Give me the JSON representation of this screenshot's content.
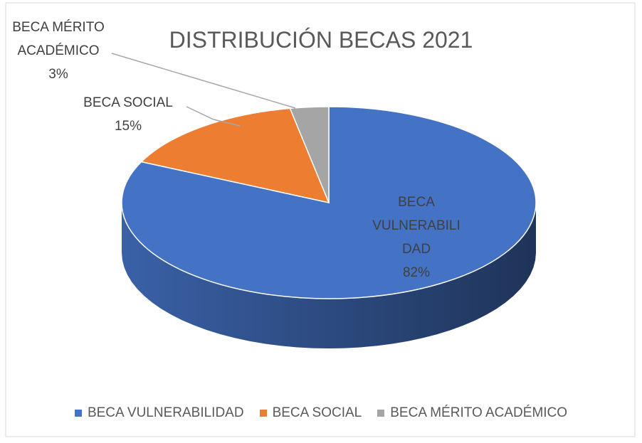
{
  "chart_data": {
    "type": "pie",
    "title": "DISTRIBUCIÓN BECAS 2021",
    "categories": [
      "BECA VULNERABILIDAD",
      "BECA SOCIAL",
      "BECA MÉRITO ACADÉMICO"
    ],
    "values": [
      82,
      15,
      3
    ],
    "value_labels": [
      "82%",
      "15%",
      "3%"
    ],
    "colors": [
      "#4472c4",
      "#ed7d31",
      "#a5a5a5"
    ],
    "legend": "bottom"
  }
}
